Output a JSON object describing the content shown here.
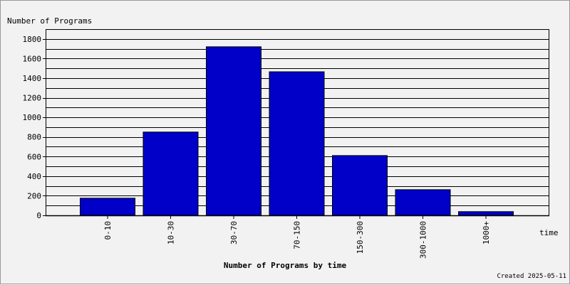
{
  "chart_data": {
    "type": "bar",
    "title": "Number of Programs by time",
    "ylabel": "Number of Programs",
    "xlabel": "time",
    "categories": [
      "0-10",
      "10-30",
      "30-70",
      "70-150",
      "150-300",
      "300-1000",
      "1000+"
    ],
    "values": [
      175,
      850,
      1720,
      1465,
      610,
      262,
      38
    ],
    "ylim": [
      0,
      1900
    ],
    "yticks": [
      0,
      200,
      400,
      600,
      800,
      1000,
      1200,
      1400,
      1600,
      1800
    ],
    "grid": true,
    "bar_color": "#0000c8",
    "footer": "Created 2025-05-11"
  }
}
